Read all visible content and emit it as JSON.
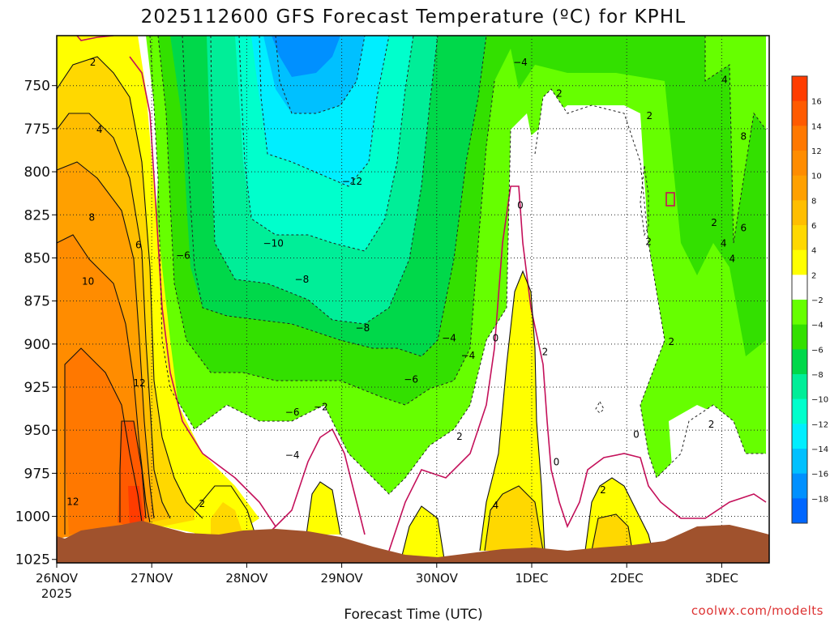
{
  "chart_data": {
    "type": "heatmap",
    "title": "2025112600 GFS Forecast Temperature (ºC) for KPHL",
    "xlabel": "Forecast Time (UTC)",
    "ylabel": "",
    "x_ticks": [
      "26NOV",
      "27NOV",
      "28NOV",
      "29NOV",
      "30NOV",
      "1DEC",
      "2DEC",
      "3DEC"
    ],
    "x_year": "2025",
    "xlim": [
      0,
      7.5
    ],
    "y_ticks": [
      "750",
      "775",
      "800",
      "825",
      "850",
      "875",
      "900",
      "925",
      "950",
      "975",
      "1000",
      "1025"
    ],
    "ylim": [
      1027,
      721
    ],
    "grid": true,
    "credit": "coolwx.com/modelts",
    "colorbar": {
      "levels": [
        "16",
        "14",
        "12",
        "10",
        "8",
        "6",
        "4",
        "2",
        "−2",
        "−4",
        "−6",
        "−8",
        "−10",
        "−12",
        "−14",
        "−16",
        "−18"
      ],
      "colors": [
        "#ff3c00",
        "#ff5a00",
        "#ff7800",
        "#ff8c00",
        "#ffa000",
        "#ffbe00",
        "#ffd800",
        "#ffff00",
        "#ffffff",
        "#66ff00",
        "#33e000",
        "#00d84a",
        "#00ee98",
        "#00ffcc",
        "#00eeff",
        "#00c0ff",
        "#0090ff",
        "#0066ff"
      ]
    },
    "contour_labels": [
      {
        "x": 0.38,
        "p": 738,
        "text": "2"
      },
      {
        "x": 0.45,
        "p": 777,
        "text": "4"
      },
      {
        "x": 0.37,
        "p": 828,
        "text": "8"
      },
      {
        "x": 0.86,
        "p": 844,
        "text": "6"
      },
      {
        "x": 0.33,
        "p": 865,
        "text": "10"
      },
      {
        "x": 0.87,
        "p": 924,
        "text": "12"
      },
      {
        "x": 0.17,
        "p": 993,
        "text": "12"
      },
      {
        "x": 1.33,
        "p": 850,
        "text": "−6"
      },
      {
        "x": 2.28,
        "p": 843,
        "text": "−10"
      },
      {
        "x": 3.11,
        "p": 807,
        "text": "−12"
      },
      {
        "x": 2.58,
        "p": 864,
        "text": "−8"
      },
      {
        "x": 3.22,
        "p": 892,
        "text": "−8"
      },
      {
        "x": 3.73,
        "p": 922,
        "text": "−6"
      },
      {
        "x": 2.48,
        "p": 941,
        "text": "−6"
      },
      {
        "x": 2.78,
        "p": 938,
        "text": "−2"
      },
      {
        "x": 2.48,
        "p": 966,
        "text": "−4"
      },
      {
        "x": 1.53,
        "p": 994,
        "text": "2"
      },
      {
        "x": 4.24,
        "p": 955,
        "text": "2"
      },
      {
        "x": 4.13,
        "p": 898,
        "text": "−4"
      },
      {
        "x": 4.33,
        "p": 908,
        "text": "−4"
      },
      {
        "x": 4.62,
        "p": 898,
        "text": "0"
      },
      {
        "x": 4.88,
        "p": 738,
        "text": "−4"
      },
      {
        "x": 5.29,
        "p": 756,
        "text": "2"
      },
      {
        "x": 4.88,
        "p": 821,
        "text": "0"
      },
      {
        "x": 5.14,
        "p": 906,
        "text": "2"
      },
      {
        "x": 5.26,
        "p": 970,
        "text": "0"
      },
      {
        "x": 4.62,
        "p": 995,
        "text": "4"
      },
      {
        "x": 6.24,
        "p": 769,
        "text": "2"
      },
      {
        "x": 6.23,
        "p": 842,
        "text": "2"
      },
      {
        "x": 5.75,
        "p": 986,
        "text": "2"
      },
      {
        "x": 6.1,
        "p": 954,
        "text": "0"
      },
      {
        "x": 6.47,
        "p": 900,
        "text": "2"
      },
      {
        "x": 6.89,
        "p": 948,
        "text": "2"
      },
      {
        "x": 6.92,
        "p": 831,
        "text": "2"
      },
      {
        "x": 7.03,
        "p": 748,
        "text": "4"
      },
      {
        "x": 7.23,
        "p": 781,
        "text": "8"
      },
      {
        "x": 7.23,
        "p": 834,
        "text": "6"
      },
      {
        "x": 7.02,
        "p": 843,
        "text": "4"
      },
      {
        "x": 7.11,
        "p": 852,
        "text": "4"
      }
    ]
  }
}
